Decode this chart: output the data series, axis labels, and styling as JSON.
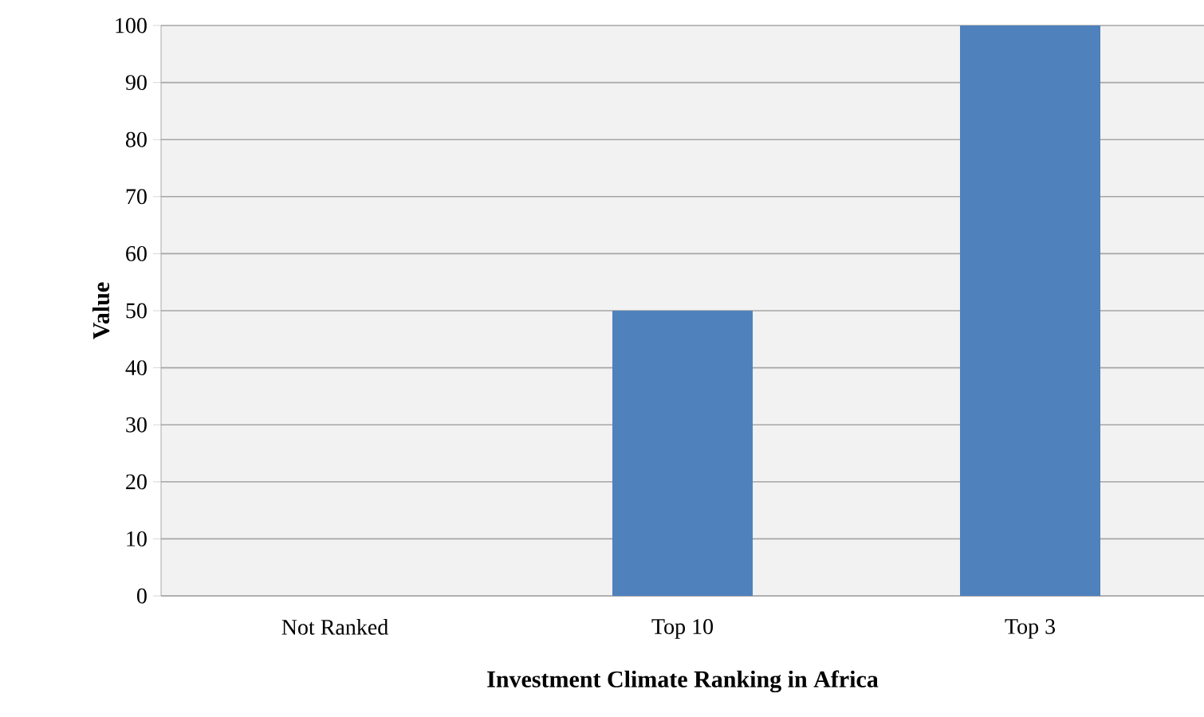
{
  "chart_data": {
    "type": "bar",
    "xlabel": "Investment Climate Ranking in Africa",
    "ylabel": "Value",
    "categories": [
      "Not Ranked",
      "Top 10",
      "Top 3"
    ],
    "values": [
      0,
      50,
      100
    ],
    "color": "#4f81bd",
    "ylim": [
      0,
      100
    ],
    "yticks": [
      0,
      10,
      20,
      30,
      40,
      50,
      60,
      70,
      80,
      90,
      100
    ],
    "grid": "y"
  }
}
